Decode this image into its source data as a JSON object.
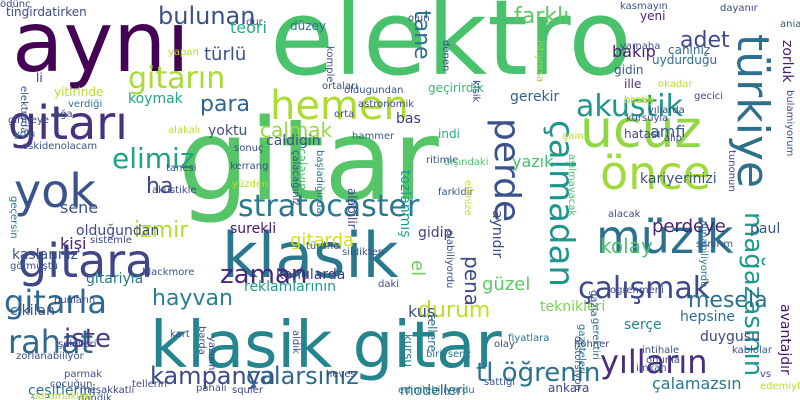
{
  "cloud": {
    "words": [
      {
        "text": "elektro",
        "color": "#4ac16d"
      },
      {
        "text": "gitar",
        "color": "#55c568"
      },
      {
        "text": "aynı",
        "color": "#440154"
      },
      {
        "text": "klasik gitar",
        "color": "#25858e"
      },
      {
        "text": "klasik",
        "color": "#2a788e"
      },
      {
        "text": "hemen",
        "color": "#addc30"
      },
      {
        "text": "gitarı",
        "color": "#46327e"
      },
      {
        "text": "gitara",
        "color": "#3f4788"
      },
      {
        "text": "yok",
        "color": "#3b528b"
      },
      {
        "text": "ucuz",
        "color": "#8fd744"
      },
      {
        "text": "perde",
        "color": "#3b528b"
      },
      {
        "text": "türkiye",
        "color": "#2e6f8e"
      },
      {
        "text": "önce",
        "color": "#a0da39"
      },
      {
        "text": "müzik",
        "color": "#2c728e"
      },
      {
        "text": "stratocaster",
        "color": "#2a788e"
      },
      {
        "text": "çalmadan",
        "color": "#1f958b"
      },
      {
        "text": "akustik",
        "color": "#1f988b"
      },
      {
        "text": "gitarın",
        "color": "#a8db34"
      },
      {
        "text": "elimiz",
        "color": "#1fa187"
      },
      {
        "text": "çalışmak",
        "color": "#3e4989"
      },
      {
        "text": "mağazasının",
        "color": "#1f9a8a"
      },
      {
        "text": "yılların",
        "color": "#472d7b"
      },
      {
        "text": "gitarla",
        "color": "#31688e"
      },
      {
        "text": "rahat",
        "color": "#31688e"
      },
      {
        "text": "iste",
        "color": "#433e85"
      },
      {
        "text": "zaman",
        "color": "#482878"
      },
      {
        "text": "kampanya",
        "color": "#3e4a89"
      },
      {
        "text": "çalarsınız",
        "color": "#31688e"
      },
      {
        "text": "tl öğrenin",
        "color": "#2d718e"
      },
      {
        "text": "bulunan",
        "color": "#3b528b"
      },
      {
        "text": "farklı",
        "color": "#5ec962"
      },
      {
        "text": "adet",
        "color": "#3e4989"
      },
      {
        "text": "para",
        "color": "#33638d"
      },
      {
        "text": "çalmak",
        "color": "#98d83e"
      },
      {
        "text": "izmir",
        "color": "#b2dd2d"
      },
      {
        "text": "gitarda",
        "color": "#d2e21b"
      },
      {
        "text": "durum",
        "color": "#bddf26"
      },
      {
        "text": "hayvan",
        "color": "#26828e"
      },
      {
        "text": "mesela",
        "color": "#2d708e"
      },
      {
        "text": "kolay",
        "color": "#50c46a"
      },
      {
        "text": "perdeye",
        "color": "#482173"
      },
      {
        "text": "kariyerinizi",
        "color": "#3a548c"
      },
      {
        "text": "tane",
        "color": "#2e6e8e"
      },
      {
        "text": "bakıp",
        "color": "#482475"
      },
      {
        "text": "amfi",
        "color": "#355e8d"
      },
      {
        "text": "türlü",
        "color": "#3b528b"
      },
      {
        "text": "teori",
        "color": "#25ab82"
      },
      {
        "text": "ha",
        "color": "#3e4989"
      },
      {
        "text": "sene",
        "color": "#3b528b"
      },
      {
        "text": "kişi",
        "color": "#481f70"
      },
      {
        "text": "yoktu",
        "color": "#3c4f8a"
      },
      {
        "text": "koymak",
        "color": "#20a486"
      },
      {
        "text": "caldigin",
        "color": "#3b528b"
      },
      {
        "text": "yazık",
        "color": "#4ac16d"
      },
      {
        "text": "pena",
        "color": "#3e4989"
      },
      {
        "text": "güzel",
        "color": "#5ec962"
      },
      {
        "text": "kuş",
        "color": "#3b528b"
      },
      {
        "text": "el",
        "color": "#6ccd5a"
      },
      {
        "text": "teknikleri",
        "color": "#7ad151"
      },
      {
        "text": "hepsine",
        "color": "#2e6d8e"
      },
      {
        "text": "serçe",
        "color": "#26828e"
      },
      {
        "text": "duygusu",
        "color": "#3f4788"
      },
      {
        "text": "modelleri",
        "color": "#2d708e"
      },
      {
        "text": "çalamazsın",
        "color": "#2a788e"
      },
      {
        "text": "zorluk",
        "color": "#482071"
      },
      {
        "text": "paul",
        "color": "#3b528b"
      },
      {
        "text": "surekli",
        "color": "#48186a"
      },
      {
        "text": "gidip",
        "color": "#433e85"
      },
      {
        "text": "olduğundan",
        "color": "#3e4989"
      },
      {
        "text": "konularda",
        "color": "#453781"
      },
      {
        "text": "reklamlarının",
        "color": "#1e9c89"
      },
      {
        "text": "gitariyla",
        "color": "#2a778e"
      },
      {
        "text": "kaslarınız",
        "color": "#3b528b"
      },
      {
        "text": "çeşitlerini",
        "color": "#2d718e"
      },
      {
        "text": "cikilan",
        "color": "#3b528b"
      },
      {
        "text": "tingirdatirken",
        "color": "#3e4989"
      },
      {
        "text": "yitirinde",
        "color": "#b8de29"
      },
      {
        "text": "li",
        "color": "#46307e"
      },
      {
        "text": "bas",
        "color": "#443a83"
      },
      {
        "text": "düzey",
        "color": "#2c728e"
      },
      {
        "text": "yeni",
        "color": "#482878"
      },
      {
        "text": "caniniz",
        "color": "#306a8e"
      },
      {
        "text": "uydurduğu",
        "color": "#2e6e8e"
      },
      {
        "text": "gidin",
        "color": "#38598c"
      },
      {
        "text": "ille",
        "color": "#453581"
      },
      {
        "text": "hatası",
        "color": "#3f4788"
      },
      {
        "text": "gerekir",
        "color": "#33638d"
      },
      {
        "text": "indi",
        "color": "#27ad81"
      },
      {
        "text": "hammer",
        "color": "#32658e"
      },
      {
        "text": "orta",
        "color": "#3e4a89"
      },
      {
        "text": "avantajdır",
        "color": "#48186a"
      },
      {
        "text": "blackmore",
        "color": "#3b528b"
      },
      {
        "text": "aynıdır",
        "color": "#3e4989"
      },
      {
        "text": "verdiği",
        "color": "#2c728e"
      },
      {
        "text": "komple",
        "color": "#3b528b"
      },
      {
        "text": "ortaları",
        "color": "#3e4989"
      },
      {
        "text": "oldugundan",
        "color": "#3b528b"
      },
      {
        "text": "geçirirdik",
        "color": "#38b977"
      },
      {
        "text": "tozlanmış",
        "color": "#1fa088"
      },
      {
        "text": "ritimle",
        "color": "#3b528b"
      },
      {
        "text": "çalayım",
        "color": "#4ac16d"
      },
      {
        "text": "alabilir",
        "color": "#3e4989"
      },
      {
        "text": "sildikten",
        "color": "#3b528b"
      },
      {
        "text": "tellere",
        "color": "#2e6f8e"
      },
      {
        "text": "kursu",
        "color": "#2a788e"
      },
      {
        "text": "sattığı",
        "color": "#3b528b"
      },
      {
        "text": "ankara",
        "color": "#3e4989"
      },
      {
        "text": "sanırım",
        "color": "#3b528b"
      },
      {
        "text": "gerektiri",
        "color": "#2c728e"
      },
      {
        "text": "kablolar",
        "color": "#3b528b"
      },
      {
        "text": "squier",
        "color": "#3e4989"
      },
      {
        "text": "edinilebiliyordu",
        "color": "#2a788e"
      },
      {
        "text": "pahalı",
        "color": "#3b528b"
      },
      {
        "text": "meşakkatli",
        "color": "#3e4989"
      },
      {
        "text": "eskidenolacam",
        "color": "#3b528b"
      },
      {
        "text": "dayanır",
        "color": "#3e4989"
      },
      {
        "text": "kasmayın",
        "color": "#3b528b"
      },
      {
        "text": "astronomik",
        "color": "#3e4989"
      },
      {
        "text": "yamaha",
        "color": "#3b528b"
      },
      {
        "text": "dışındaki",
        "color": "#4ac16d"
      },
      {
        "text": "hohner",
        "color": "#3e4989"
      },
      {
        "text": "intihale",
        "color": "#3b528b"
      },
      {
        "text": "onunla",
        "color": "#3e4989"
      },
      {
        "text": "bulamiyorum",
        "color": "#3b528b"
      },
      {
        "text": "alınabiliyordu",
        "color": "#2a788e"
      },
      {
        "text": "türüne",
        "color": "#3b528b"
      },
      {
        "text": "sistemle",
        "color": "#3e4989"
      },
      {
        "text": "görmüştü",
        "color": "#3b528b"
      },
      {
        "text": "sonuç",
        "color": "#3e4989"
      },
      {
        "text": "kerrang",
        "color": "#3b528b"
      },
      {
        "text": "bunların",
        "color": "#3e4989"
      },
      {
        "text": "cocuğun",
        "color": "#3b528b"
      },
      {
        "text": "tellerin",
        "color": "#3e4989"
      },
      {
        "text": "parmak",
        "color": "#3b528b"
      },
      {
        "text": "heves",
        "color": "#3e4989"
      },
      {
        "text": "dandik",
        "color": "#3b528b"
      },
      {
        "text": "istiyorsa",
        "color": "#8fd744"
      },
      {
        "text": "klsik",
        "color": "#3e4989"
      },
      {
        "text": "baslik",
        "color": "#8fd744"
      },
      {
        "text": "gain",
        "color": "#b8de29"
      },
      {
        "text": "kursuyla",
        "color": "#3b528b"
      },
      {
        "text": "geçersin",
        "color": "#2a788e"
      },
      {
        "text": "girmeye",
        "color": "#3e4989"
      },
      {
        "text": "aşılmayacak",
        "color": "#4ac16d"
      },
      {
        "text": "başladığında",
        "color": "#2a788e"
      },
      {
        "text": "farkldir",
        "color": "#3b528b"
      },
      {
        "text": "daki",
        "color": "#3e4989"
      },
      {
        "text": "barda",
        "color": "#3b528b"
      },
      {
        "text": "yazısını",
        "color": "#3e4989"
      },
      {
        "text": "kart",
        "color": "#3b528b"
      },
      {
        "text": "şekilleri",
        "color": "#3e4989"
      },
      {
        "text": "yolu",
        "color": "#2a788e"
      },
      {
        "text": "elektroda",
        "color": "#3b528b"
      },
      {
        "text": "alakalı",
        "color": "#b8de29"
      },
      {
        "text": "yüzden",
        "color": "#b8de29"
      },
      {
        "text": "tanesi",
        "color": "#3b528b"
      },
      {
        "text": "akustikle",
        "color": "#3e4989"
      },
      {
        "text": "ağa",
        "color": "#3b528b"
      },
      {
        "text": "gecici",
        "color": "#3e4989"
      },
      {
        "text": "aniadiniz",
        "color": "#3b528b"
      },
      {
        "text": "birsey",
        "color": "#b8de29"
      },
      {
        "text": "yıllarda",
        "color": "#3e4989"
      },
      {
        "text": "okadar",
        "color": "#b8de29"
      },
      {
        "text": "alıp",
        "color": "#3b528b"
      },
      {
        "text": "olun",
        "color": "#3e4989"
      },
      {
        "text": "denen",
        "color": "#3b528b"
      },
      {
        "text": "gazeteleri",
        "color": "#2a788e"
      },
      {
        "text": "zorlanabiliyor",
        "color": "#3b528b"
      },
      {
        "text": "yapan",
        "color": "#b8de29"
      },
      {
        "text": "dur",
        "color": "#3e4989"
      },
      {
        "text": "elimize",
        "color": "#b8de29"
      },
      {
        "text": "çalacağınız",
        "color": "#3b528b"
      },
      {
        "text": "ogrenmeni",
        "color": "#3e4989"
      },
      {
        "text": "gazla",
        "color": "#3b528b"
      },
      {
        "text": "fiyatlara",
        "color": "#2a788e"
      },
      {
        "text": "vs",
        "color": "#3e4989"
      },
      {
        "text": "edemiyle",
        "color": "#b8de29"
      },
      {
        "text": "distorsiyon",
        "color": "#3b528b"
      },
      {
        "text": "biriysenz",
        "color": "#2a788e"
      },
      {
        "text": "alabiliyordu",
        "color": "#3b528b"
      },
      {
        "text": "olay",
        "color": "#3e4989"
      },
      {
        "text": "aldık",
        "color": "#3b528b"
      },
      {
        "text": "tunonun",
        "color": "#3e4989"
      },
      {
        "text": "imkan",
        "color": "#3b528b"
      },
      {
        "text": "paramaklari",
        "color": "#b8de29"
      },
      {
        "text": "alacak",
        "color": "#3b528b"
      },
      {
        "text": "ödünç",
        "color": "#3e4989"
      }
    ]
  }
}
